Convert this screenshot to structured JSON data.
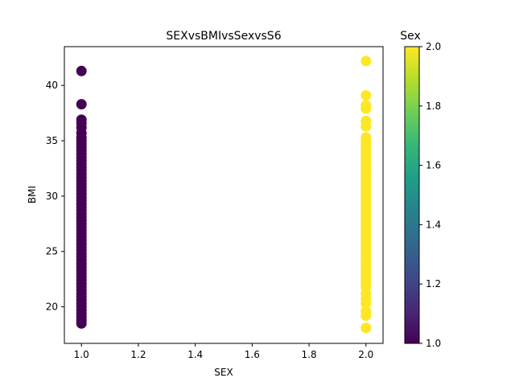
{
  "chart_data": {
    "type": "scatter",
    "title": "SEXvsBMIvsSexvsS6",
    "xlabel": "SEX",
    "ylabel": "BMI",
    "xlim": [
      0.94,
      2.06
    ],
    "ylim": [
      16.7,
      43.5
    ],
    "xticks": [
      "1.0",
      "1.2",
      "1.4",
      "1.6",
      "1.8",
      "2.0"
    ],
    "xtick_values": [
      1.0,
      1.2,
      1.4,
      1.6,
      1.8,
      2.0
    ],
    "yticks": [
      "20",
      "25",
      "30",
      "35",
      "40"
    ],
    "ytick_values": [
      20,
      25,
      30,
      35,
      40
    ],
    "grid": false,
    "colorbar": {
      "label": "Sex",
      "range": [
        1.0,
        2.0
      ],
      "ticks": [
        "1.0",
        "1.2",
        "1.4",
        "1.6",
        "1.8",
        "2.0"
      ],
      "tick_values": [
        1.0,
        1.2,
        1.4,
        1.6,
        1.8,
        2.0
      ],
      "colormap": "viridis",
      "colors": [
        "#440154",
        "#482878",
        "#3e4a89",
        "#31688e",
        "#26828e",
        "#1f9e89",
        "#35b779",
        "#6ece58",
        "#b5de2b",
        "#fde725"
      ]
    },
    "series": [
      {
        "x": 1.0,
        "color": "#440154",
        "y": [
          41.3,
          38.3,
          36.9,
          36.6,
          36.2,
          35.7,
          35.3,
          35.0,
          34.7,
          34.4,
          34.1,
          33.8,
          33.5,
          33.2,
          32.9,
          32.6,
          32.3,
          32.0,
          31.7,
          31.4,
          31.1,
          30.8,
          30.5,
          30.2,
          29.9,
          29.6,
          29.3,
          29.0,
          28.7,
          28.4,
          28.1,
          27.8,
          27.5,
          27.2,
          26.9,
          26.6,
          26.3,
          26.0,
          25.7,
          25.4,
          25.1,
          24.8,
          24.5,
          24.2,
          23.9,
          23.6,
          23.3,
          23.0,
          22.7,
          22.4,
          22.1,
          21.8,
          21.5,
          21.2,
          20.9,
          20.6,
          20.3,
          20.0,
          19.7,
          19.4,
          19.1,
          18.8,
          18.5
        ]
      },
      {
        "x": 2.0,
        "color": "#fde725",
        "y": [
          42.2,
          39.1,
          38.2,
          37.9,
          36.8,
          36.3,
          35.3,
          35.0,
          34.7,
          34.4,
          34.1,
          33.8,
          33.5,
          33.2,
          32.9,
          32.6,
          32.3,
          32.0,
          31.7,
          31.4,
          31.1,
          30.8,
          30.5,
          30.2,
          29.9,
          29.6,
          29.3,
          29.0,
          28.7,
          28.4,
          28.1,
          27.8,
          27.5,
          27.2,
          26.9,
          26.6,
          26.3,
          26.0,
          25.7,
          25.4,
          25.1,
          24.8,
          24.5,
          24.2,
          23.9,
          23.6,
          23.3,
          23.0,
          22.7,
          22.4,
          22.1,
          21.8,
          21.2,
          20.7,
          20.3,
          19.6,
          19.2,
          18.1
        ]
      }
    ]
  }
}
